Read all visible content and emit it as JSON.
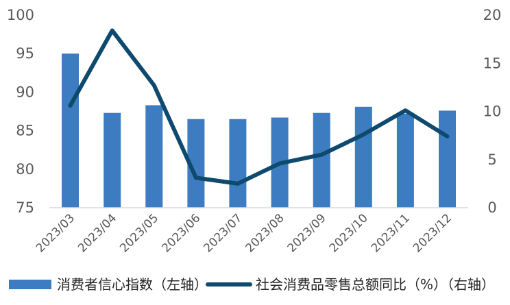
{
  "chart_data": {
    "type": "bar+line",
    "categories": [
      "2023/03",
      "2023/04",
      "2023/05",
      "2023/06",
      "2023/07",
      "2023/08",
      "2023/09",
      "2023/10",
      "2023/11",
      "2023/12"
    ],
    "series": [
      {
        "name": "消费者信心指数（左轴）",
        "type": "bar",
        "axis": "left",
        "color": "#3d7cc0",
        "values": [
          95.0,
          87.3,
          88.3,
          86.5,
          86.5,
          86.7,
          87.3,
          88.1,
          87.2,
          87.6
        ]
      },
      {
        "name": "社会消费品零售总额同比（%）（右轴）",
        "type": "line",
        "axis": "right",
        "color": "#0e4a6e",
        "values": [
          10.6,
          18.4,
          12.7,
          3.1,
          2.5,
          4.6,
          5.5,
          7.6,
          10.1,
          7.4
        ]
      }
    ],
    "y_left": {
      "min": 75,
      "max": 100,
      "ticks": [
        75,
        80,
        85,
        90,
        95,
        100
      ]
    },
    "y_right": {
      "min": 0,
      "max": 20,
      "ticks": [
        0,
        5,
        10,
        15,
        20
      ]
    },
    "grid": false,
    "legend_position": "bottom"
  }
}
